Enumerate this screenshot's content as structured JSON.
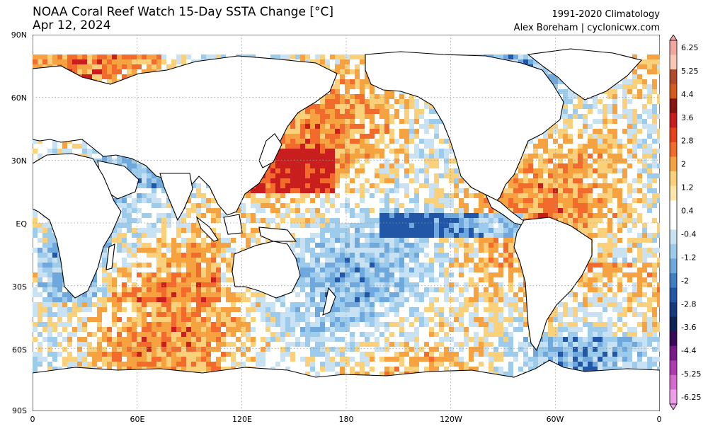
{
  "header": {
    "title_line1": "NOAA Coral Reef Watch 15-Day SSTA Change [°C]",
    "title_line2": "Apr 12, 2024",
    "credit_line1": "1991-2020 Climatology",
    "credit_line2": "Alex Boreham | cyclonicwx.com"
  },
  "map": {
    "projection": "equirectangular",
    "central_longitude": 180,
    "lat_labels": [
      "90N",
      "60N",
      "30N",
      "EQ",
      "30S",
      "60S",
      "90S"
    ],
    "lon_labels": [
      "0",
      "60E",
      "120E",
      "180",
      "120W",
      "60W",
      "0"
    ],
    "gridlines": true
  },
  "colorbar": {
    "units": "°C",
    "tick_labels": [
      "6.25",
      "5.25",
      "4.4",
      "3.6",
      "2.8",
      "2",
      "1.2",
      "0.4",
      "-0.4",
      "-1.2",
      "-2",
      "-2.8",
      "-3.6",
      "-4.4",
      "-5.25",
      "-6.25"
    ],
    "colors": [
      "#f4a6a0",
      "#f9c8b4",
      "#b04a2a",
      "#d45a1e",
      "#8a1414",
      "#c81e1e",
      "#e8411a",
      "#f26b2c",
      "#f7a240",
      "#fbd07a",
      "#fde6a8",
      "#ffffff",
      "#ffffff",
      "#c8e2f4",
      "#9ccbec",
      "#6fa8dc",
      "#3f7fc4",
      "#2256a6",
      "#163a7e",
      "#0c2456",
      "#3a0a5a",
      "#7a1a8a",
      "#b03ab0",
      "#d46ad0",
      "#ee9ee8"
    ]
  }
}
